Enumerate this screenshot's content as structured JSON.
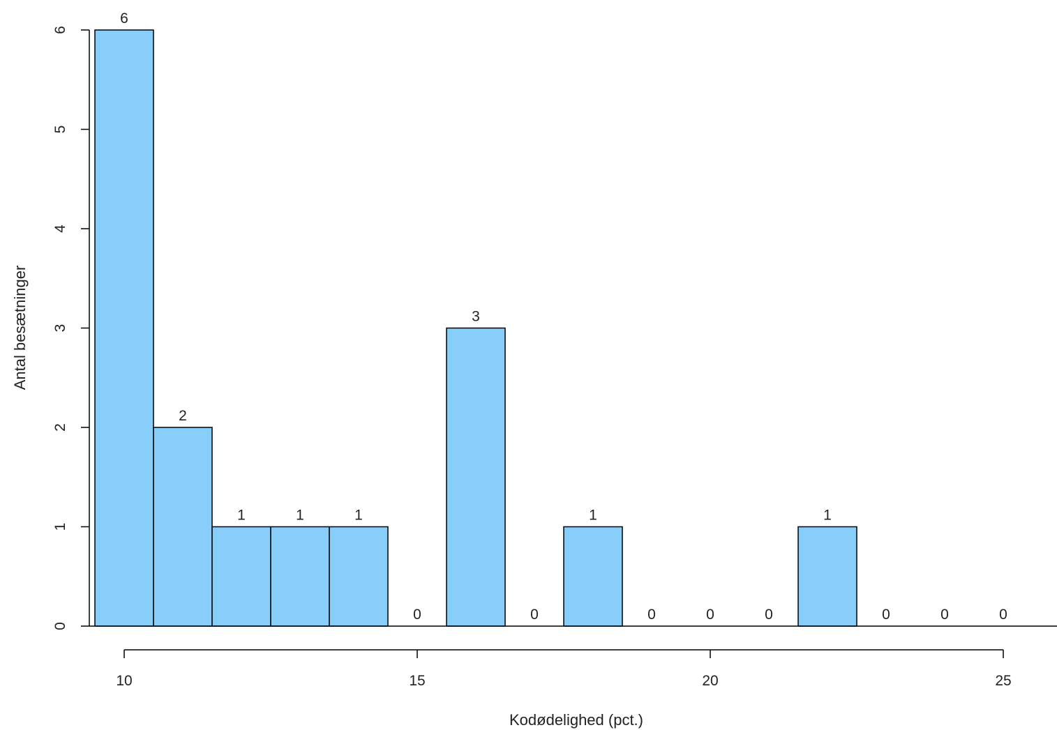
{
  "chart_data": {
    "type": "bar",
    "title": "",
    "xlabel": "Kodødelighed (pct.)",
    "ylabel": "Antal besætninger",
    "bins": [
      {
        "from": 9.5,
        "to": 10.5,
        "count": 6
      },
      {
        "from": 10.5,
        "to": 11.5,
        "count": 2
      },
      {
        "from": 11.5,
        "to": 12.5,
        "count": 1
      },
      {
        "from": 12.5,
        "to": 13.5,
        "count": 1
      },
      {
        "from": 13.5,
        "to": 14.5,
        "count": 1
      },
      {
        "from": 14.5,
        "to": 15.5,
        "count": 0
      },
      {
        "from": 15.5,
        "to": 16.5,
        "count": 3
      },
      {
        "from": 16.5,
        "to": 17.5,
        "count": 0
      },
      {
        "from": 17.5,
        "to": 18.5,
        "count": 1
      },
      {
        "from": 18.5,
        "to": 19.5,
        "count": 0
      },
      {
        "from": 19.5,
        "to": 20.5,
        "count": 0
      },
      {
        "from": 20.5,
        "to": 21.5,
        "count": 0
      },
      {
        "from": 21.5,
        "to": 22.5,
        "count": 1
      },
      {
        "from": 22.5,
        "to": 23.5,
        "count": 0
      },
      {
        "from": 23.5,
        "to": 24.5,
        "count": 0
      },
      {
        "from": 24.5,
        "to": 25.5,
        "count": 0
      }
    ],
    "xticks": [
      "10",
      "15",
      "20",
      "25"
    ],
    "xtick_values": [
      10,
      15,
      20,
      25
    ],
    "yticks": [
      "0",
      "1",
      "2",
      "3",
      "4",
      "5",
      "6"
    ],
    "ytick_values": [
      0,
      1,
      2,
      3,
      4,
      5,
      6
    ],
    "xlim": [
      9.5,
      25.5
    ],
    "ylim": [
      0,
      6
    ],
    "grid": false,
    "bar_color": "#87cefa",
    "edge_color": "#000000"
  }
}
